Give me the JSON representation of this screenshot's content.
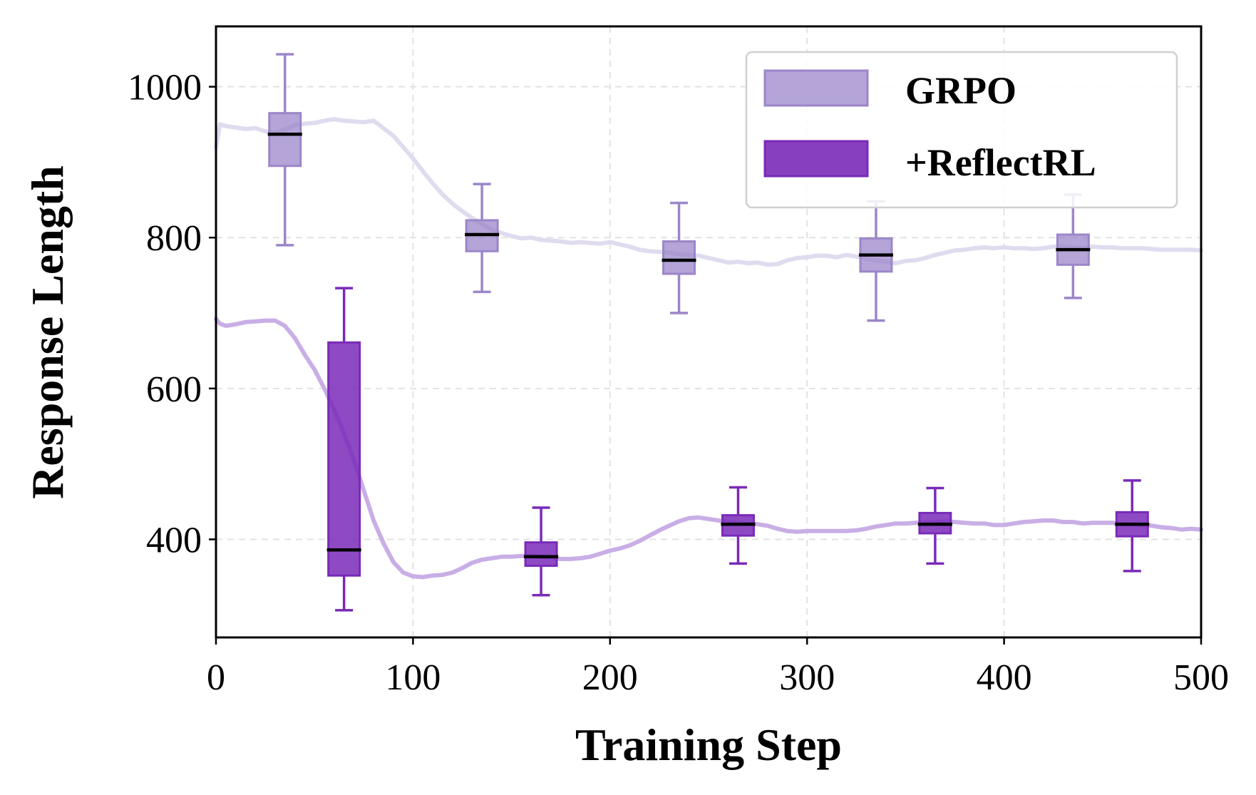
{
  "chart_data": {
    "type": "line",
    "title": "",
    "xlabel": "Training Step",
    "ylabel": "Response Length",
    "xlim": [
      0,
      500
    ],
    "ylim": [
      270,
      1080
    ],
    "xticks": [
      0,
      100,
      200,
      300,
      400,
      500
    ],
    "yticks": [
      400,
      600,
      800,
      1000
    ],
    "xtick_labels": [
      "0",
      "100",
      "200",
      "300",
      "400",
      "500"
    ],
    "ytick_labels": [
      "400",
      "600",
      "800",
      "1000"
    ],
    "grid": true,
    "legend_position": "top-right",
    "series": [
      {
        "name": "GRPO",
        "color": "#9b86c9",
        "line_color": "#e0dbef",
        "line": {
          "x": [
            0,
            2,
            5,
            10,
            15,
            20,
            25,
            30,
            35,
            40,
            45,
            50,
            55,
            60,
            65,
            70,
            75,
            80,
            85,
            90,
            95,
            100,
            105,
            110,
            115,
            120,
            125,
            130,
            135,
            140,
            145,
            150,
            155,
            160,
            165,
            170,
            175,
            180,
            185,
            190,
            195,
            200,
            205,
            210,
            215,
            220,
            225,
            230,
            235,
            240,
            245,
            250,
            255,
            260,
            265,
            270,
            275,
            280,
            285,
            290,
            295,
            300,
            305,
            310,
            315,
            320,
            325,
            330,
            335,
            340,
            345,
            350,
            355,
            360,
            365,
            370,
            375,
            380,
            385,
            390,
            395,
            400,
            405,
            410,
            415,
            420,
            425,
            430,
            435,
            440,
            445,
            450,
            455,
            460,
            465,
            470,
            475,
            480,
            485,
            490,
            495,
            500
          ],
          "y": [
            920,
            950,
            948,
            946,
            944,
            945,
            941,
            939,
            943,
            949,
            951,
            952,
            955,
            957,
            955,
            954,
            953,
            955,
            945,
            935,
            920,
            905,
            888,
            872,
            857,
            845,
            835,
            826,
            818,
            811,
            806,
            802,
            799,
            800,
            797,
            796,
            795,
            793,
            794,
            793,
            792,
            794,
            791,
            788,
            784,
            782,
            781,
            780,
            778,
            777,
            776,
            773,
            770,
            767,
            768,
            766,
            767,
            764,
            765,
            770,
            773,
            774,
            776,
            776,
            774,
            777,
            775,
            772,
            770,
            768,
            766,
            769,
            770,
            773,
            777,
            780,
            783,
            784,
            786,
            787,
            786,
            787,
            786,
            786,
            785,
            786,
            788,
            788,
            787,
            786,
            788,
            787,
            787,
            786,
            786,
            786,
            785,
            784,
            784,
            784,
            784,
            783
          ]
        },
        "boxes": [
          {
            "x": 35,
            "whisker_low": 790,
            "q1": 895,
            "median": 937,
            "q3": 965,
            "whisker_high": 1043
          },
          {
            "x": 135,
            "whisker_low": 728,
            "q1": 782,
            "median": 804,
            "q3": 823,
            "whisker_high": 871
          },
          {
            "x": 235,
            "whisker_low": 700,
            "q1": 752,
            "median": 770,
            "q3": 795,
            "whisker_high": 846
          },
          {
            "x": 335,
            "whisker_low": 690,
            "q1": 755,
            "median": 777,
            "q3": 799,
            "whisker_high": 848
          },
          {
            "x": 435,
            "whisker_low": 720,
            "q1": 764,
            "median": 784,
            "q3": 804,
            "whisker_high": 857
          }
        ]
      },
      {
        "name": "+ReflectRL",
        "color": "#7a2ab8",
        "line_color": "#c9aee6",
        "line": {
          "x": [
            0,
            2,
            5,
            10,
            15,
            20,
            25,
            30,
            35,
            40,
            45,
            50,
            55,
            60,
            65,
            70,
            75,
            80,
            85,
            90,
            95,
            100,
            105,
            110,
            115,
            120,
            125,
            130,
            135,
            140,
            145,
            150,
            155,
            160,
            165,
            170,
            175,
            180,
            185,
            190,
            195,
            200,
            205,
            210,
            215,
            220,
            225,
            230,
            235,
            240,
            245,
            250,
            255,
            260,
            265,
            270,
            275,
            280,
            285,
            290,
            295,
            300,
            305,
            310,
            315,
            320,
            325,
            330,
            335,
            340,
            345,
            350,
            355,
            360,
            365,
            370,
            375,
            380,
            385,
            390,
            395,
            400,
            405,
            410,
            415,
            420,
            425,
            430,
            435,
            440,
            445,
            450,
            455,
            460,
            465,
            470,
            475,
            480,
            485,
            490,
            495,
            500
          ],
          "y": [
            692,
            686,
            683,
            685,
            688,
            689,
            690,
            690,
            683,
            667,
            645,
            625,
            600,
            572,
            540,
            505,
            465,
            425,
            395,
            370,
            356,
            351,
            350,
            352,
            353,
            356,
            362,
            369,
            373,
            375,
            377,
            377,
            378,
            378,
            377,
            376,
            374,
            374,
            375,
            377,
            381,
            385,
            388,
            392,
            398,
            405,
            412,
            418,
            424,
            428,
            429,
            427,
            425,
            423,
            422,
            421,
            420,
            418,
            414,
            411,
            410,
            411,
            411,
            411,
            411,
            411,
            412,
            414,
            417,
            419,
            421,
            421,
            422,
            422,
            423,
            424,
            423,
            422,
            421,
            421,
            419,
            419,
            421,
            423,
            424,
            425,
            425,
            423,
            423,
            421,
            422,
            422,
            422,
            420,
            420,
            419,
            418,
            416,
            415,
            413,
            414,
            413
          ]
        },
        "boxes": [
          {
            "x": 65,
            "whisker_low": 306,
            "q1": 352,
            "median": 386,
            "q3": 661,
            "whisker_high": 733
          },
          {
            "x": 165,
            "whisker_low": 326,
            "q1": 365,
            "median": 377,
            "q3": 396,
            "whisker_high": 442
          },
          {
            "x": 265,
            "whisker_low": 368,
            "q1": 405,
            "median": 420,
            "q3": 432,
            "whisker_high": 469
          },
          {
            "x": 365,
            "whisker_low": 368,
            "q1": 408,
            "median": 420,
            "q3": 435,
            "whisker_high": 468
          },
          {
            "x": 465,
            "whisker_low": 358,
            "q1": 404,
            "median": 420,
            "q3": 436,
            "whisker_high": 478
          }
        ]
      }
    ]
  }
}
